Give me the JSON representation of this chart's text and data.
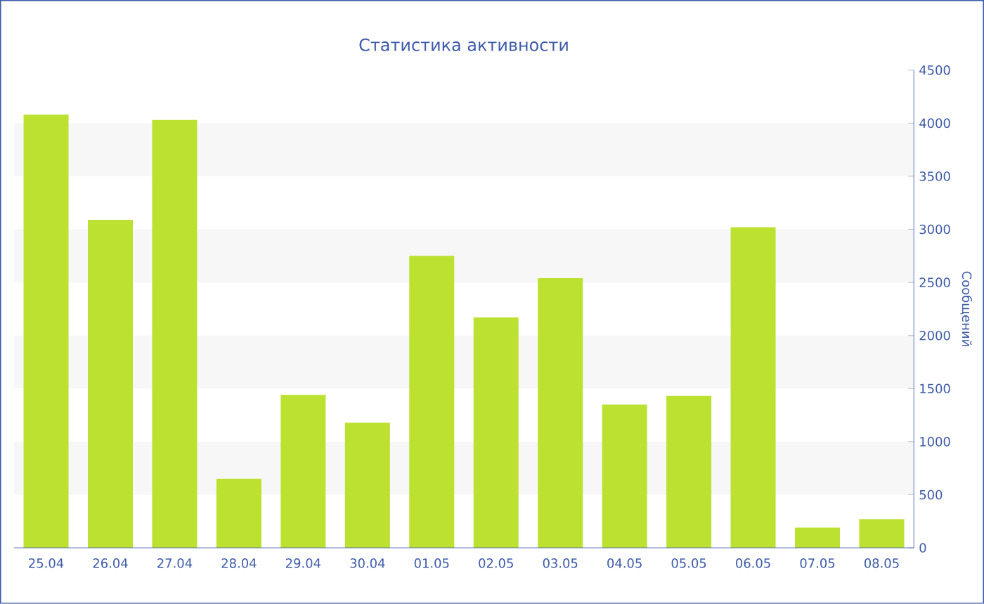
{
  "chart_data": {
    "type": "bar",
    "title": "Статистика активности",
    "ylabel": "Сообщений",
    "categories": [
      "25.04",
      "26.04",
      "27.04",
      "28.04",
      "29.04",
      "30.04",
      "01.05",
      "02.05",
      "03.05",
      "04.05",
      "05.05",
      "06.05",
      "07.05",
      "08.05"
    ],
    "values": [
      4080,
      3090,
      4030,
      650,
      1440,
      1180,
      2750,
      2170,
      2540,
      1350,
      1430,
      3020,
      190,
      270
    ],
    "color": "#bce131",
    "ylim": [
      0,
      4500
    ],
    "yticks": [
      0,
      500,
      1000,
      1500,
      2000,
      2500,
      3000,
      3500,
      4000,
      4500
    ],
    "bands": [
      {
        "axis": "y",
        "from": 500,
        "to": 1000,
        "color": "#f7f7f7"
      },
      {
        "axis": "y",
        "from": 1500,
        "to": 2000,
        "color": "#f7f7f7"
      },
      {
        "axis": "y",
        "from": 2500,
        "to": 3000,
        "color": "#f7f7f7"
      },
      {
        "axis": "y",
        "from": 3500,
        "to": 4000,
        "color": "#f7f7f7"
      }
    ]
  }
}
